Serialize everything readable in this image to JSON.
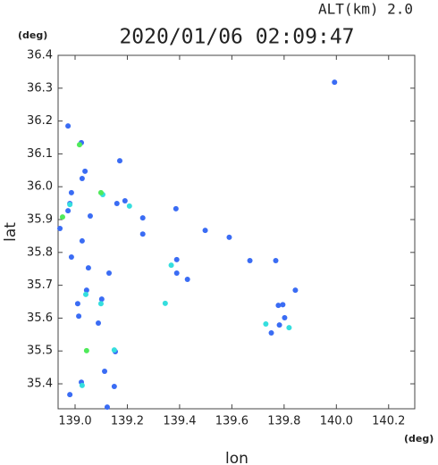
{
  "chart_data": {
    "type": "scatter",
    "title": "2020/01/06 02:09:47",
    "subtitle": "ALT(km) 2.0",
    "x_label": "lon",
    "y_label": "lat",
    "x_unit": "(deg)",
    "y_unit": "(deg)",
    "xlim": [
      138.935,
      140.3
    ],
    "ylim": [
      35.324,
      36.4
    ],
    "xticks": [
      {
        "value": 139,
        "label": "139.0"
      },
      139.2,
      139.4,
      139.6,
      139.8,
      {
        "value": 140,
        "label": "140.0"
      },
      140.2
    ],
    "yticks": [
      35.4,
      35.5,
      35.6,
      35.7,
      35.8,
      35.9,
      {
        "value": 36,
        "label": "36.0"
      },
      36.1,
      36.2,
      36.3,
      36.4
    ],
    "grid": false,
    "series": [
      {
        "color": "#3a6cf4",
        "x": [
          139.993,
          138.973,
          139.024,
          139.038,
          139.027,
          138.986,
          138.98,
          138.973,
          139.058,
          138.942,
          139.16,
          139.191,
          139.259,
          139.386,
          139.498,
          139.59,
          139.027,
          138.986,
          139.051,
          139.13,
          139.389,
          139.669,
          139.768,
          139.843,
          139.044,
          139.102,
          139.01,
          139.795,
          139.778,
          139.014,
          139.802,
          139.089,
          139.782,
          139.751,
          139.154,
          139.113,
          139.024,
          139.15,
          138.98,
          139.123,
          139.259,
          139.389,
          139.43,
          139.171
        ],
        "y": [
          36.318,
          36.185,
          36.134,
          36.047,
          36.025,
          35.982,
          35.949,
          35.927,
          35.911,
          35.873,
          35.949,
          35.957,
          35.905,
          35.933,
          35.867,
          35.846,
          35.835,
          35.786,
          35.753,
          35.737,
          35.778,
          35.775,
          35.775,
          35.685,
          35.685,
          35.658,
          35.644,
          35.641,
          35.639,
          35.606,
          35.601,
          35.585,
          35.579,
          35.555,
          35.498,
          35.438,
          35.405,
          35.392,
          35.367,
          35.329,
          35.856,
          35.737,
          35.718,
          36.079
        ]
      },
      {
        "color": "#35dede",
        "x": [
          139.041,
          138.98,
          139.106,
          139.345,
          139.368,
          139.73,
          139.819,
          139.15,
          139.027,
          139.099,
          139.208
        ],
        "y": [
          35.672,
          35.946,
          35.976,
          35.645,
          35.761,
          35.582,
          35.571,
          35.503,
          35.395,
          35.644,
          35.941
        ]
      },
      {
        "color": "#4fea5a",
        "x": [
          139.017,
          139.044,
          139.099,
          138.952
        ],
        "y": [
          36.128,
          35.501,
          35.982,
          35.908
        ]
      }
    ]
  }
}
